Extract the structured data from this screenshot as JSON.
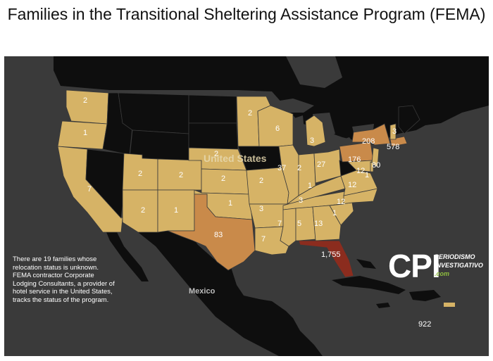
{
  "title": "Families in the Transitional Sheltering Assistance Program (FEMA)",
  "note": "There are 19 families whose relocation status is unknown. FEMA contractor Corporate Lodging Consultants, a provider of hotel service in the United States, tracks the status of the program.",
  "country_labels": {
    "us": "United States",
    "mexico": "Mexico"
  },
  "logo": {
    "mark": "CPI",
    "line1": "PERIODISMO",
    "line2": "INVESTIGATIVO",
    "line3": ".com"
  },
  "colors": {
    "background": "#3a3a3a",
    "no_data": "#0e0e0e",
    "low": "#d6b366",
    "mid": "#c98a4a",
    "high": "#8b2c1e"
  },
  "states": [
    {
      "id": "WA",
      "label": "2"
    },
    {
      "id": "OR",
      "label": "1"
    },
    {
      "id": "CA",
      "label": "7"
    },
    {
      "id": "NV",
      "label": ""
    },
    {
      "id": "UT",
      "label": "2"
    },
    {
      "id": "AZ",
      "label": "2"
    },
    {
      "id": "CO",
      "label": "2"
    },
    {
      "id": "NM",
      "label": "1"
    },
    {
      "id": "NE",
      "label": "2"
    },
    {
      "id": "KS",
      "label": "2"
    },
    {
      "id": "OK",
      "label": "1"
    },
    {
      "id": "TX",
      "label": "83"
    },
    {
      "id": "MN",
      "label": "2"
    },
    {
      "id": "WI",
      "label": "6"
    },
    {
      "id": "MO",
      "label": "2"
    },
    {
      "id": "AR",
      "label": "3"
    },
    {
      "id": "LA",
      "label": "7"
    },
    {
      "id": "IL",
      "label": "37"
    },
    {
      "id": "IN",
      "label": "2"
    },
    {
      "id": "MI",
      "label": "3"
    },
    {
      "id": "OH",
      "label": "27"
    },
    {
      "id": "KY",
      "label": "1"
    },
    {
      "id": "TN",
      "label": "3"
    },
    {
      "id": "MS",
      "label": "7"
    },
    {
      "id": "AL",
      "label": "5"
    },
    {
      "id": "GA",
      "label": "13"
    },
    {
      "id": "FL",
      "label": "1,755"
    },
    {
      "id": "SC",
      "label": "1"
    },
    {
      "id": "NC",
      "label": "12"
    },
    {
      "id": "VA",
      "label": "12"
    },
    {
      "id": "PA",
      "label": "176"
    },
    {
      "id": "NY",
      "label": "208"
    },
    {
      "id": "NJ",
      "label": "80"
    },
    {
      "id": "MD",
      "label": "12"
    },
    {
      "id": "DE",
      "label": "1"
    },
    {
      "id": "MA",
      "label": "578"
    },
    {
      "id": "VT",
      "label": "3"
    },
    {
      "id": "PR",
      "label": "922"
    }
  ]
}
